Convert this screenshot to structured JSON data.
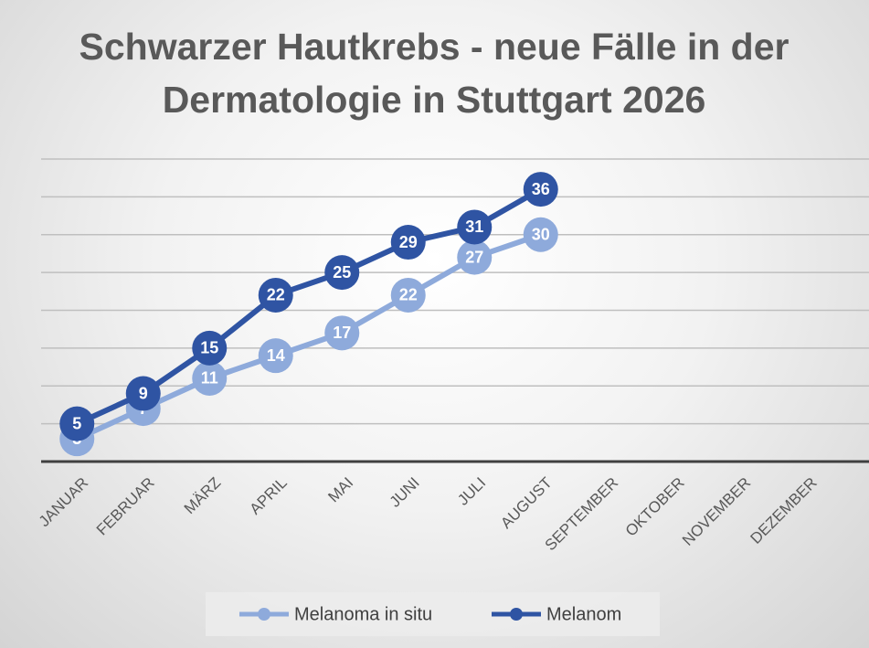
{
  "chart_data": {
    "type": "line",
    "title": "Schwarzer Hautkrebs - neue Fälle in der Dermatologie in Stuttgart 2026",
    "categories": [
      "JANUAR",
      "FEBRUAR",
      "MÄRZ",
      "APRIL",
      "MAI",
      "JUNI",
      "JULI",
      "AUGUST",
      "SEPTEMBER",
      "OKTOBER",
      "NOVEMBER",
      "DEZEMBER"
    ],
    "series": [
      {
        "name": "Melanoma in situ",
        "color": "#8eaadb",
        "values": [
          3,
          7,
          11,
          14,
          17,
          22,
          27,
          30,
          null,
          null,
          null,
          null
        ]
      },
      {
        "name": "Melanom",
        "color": "#2f54a3",
        "values": [
          5,
          9,
          15,
          22,
          25,
          29,
          31,
          36,
          null,
          null,
          null,
          null
        ]
      }
    ],
    "ylim": [
      0,
      40
    ],
    "yticks": [
      0,
      5,
      10,
      15,
      20,
      25,
      30,
      35,
      40
    ],
    "grid": true,
    "legend": "bottom"
  }
}
